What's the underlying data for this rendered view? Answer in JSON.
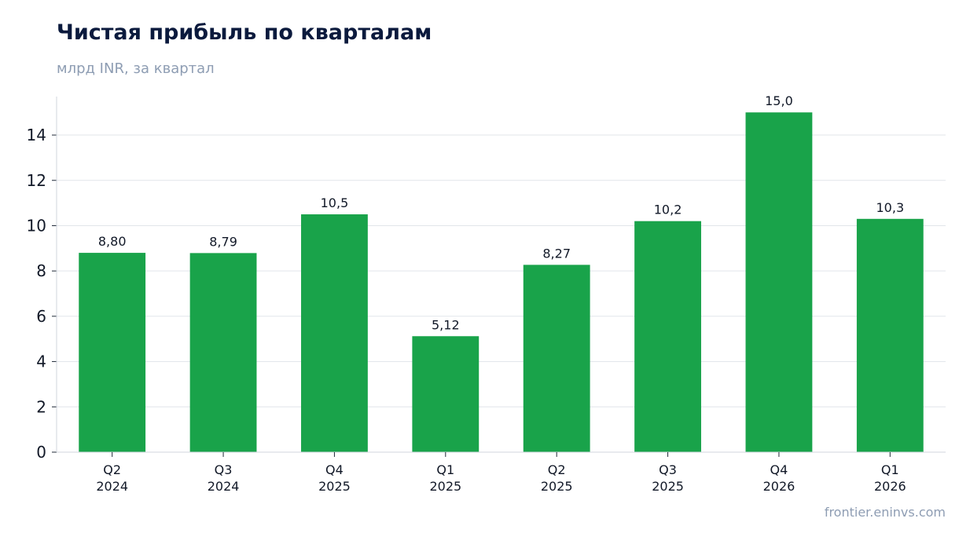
{
  "header": {
    "title": "Чистая прибыль по кварталам",
    "subtitle": "млрд INR, за квартал"
  },
  "footer": {
    "source": "frontier.eninvs.com"
  },
  "chart_data": {
    "type": "bar",
    "title": "Чистая прибыль по кварталам",
    "subtitle": "млрд INR, за квартал",
    "xlabel": "",
    "ylabel": "",
    "categories": [
      [
        "Q2",
        "2024"
      ],
      [
        "Q3",
        "2024"
      ],
      [
        "Q4",
        "2025"
      ],
      [
        "Q1",
        "2025"
      ],
      [
        "Q2",
        "2025"
      ],
      [
        "Q3",
        "2025"
      ],
      [
        "Q4",
        "2026"
      ],
      [
        "Q1",
        "2026"
      ]
    ],
    "values": [
      8.8,
      8.79,
      10.5,
      5.12,
      8.27,
      10.2,
      15.0,
      10.3
    ],
    "value_labels": [
      "8,80",
      "8,79",
      "10,5",
      "5,12",
      "8,27",
      "10,2",
      "15,0",
      "10,3"
    ],
    "yticks": [
      0,
      2,
      4,
      6,
      8,
      10,
      12,
      14
    ],
    "ylim": [
      0,
      15.7
    ],
    "grid": true,
    "legend": "none",
    "bar_color": "#19a34a"
  }
}
